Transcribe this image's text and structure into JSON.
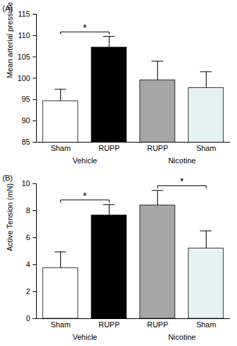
{
  "chart_data": [
    {
      "type": "bar",
      "title": "(A)",
      "y_label": "Mean arterial pressure (mm Hg)",
      "categories": [
        "Sham",
        "RUPP",
        "RUPP",
        "Sham"
      ],
      "group_labels": [
        "Vehicle",
        "Vehicle",
        "Nicotine",
        "Nicotine"
      ],
      "values": [
        94.6,
        107.2,
        99.5,
        97.7
      ],
      "errors": [
        2.8,
        2.6,
        4.5,
        3.8
      ],
      "colors": [
        "#ffffff",
        "#000000",
        "#a6a6a6",
        "#e4f2f2"
      ],
      "ylim": [
        85,
        115
      ],
      "yticks": [
        85,
        90,
        95,
        100,
        105,
        110,
        115
      ],
      "annotations": [
        {
          "between": [
            0,
            1
          ],
          "text": "*"
        }
      ]
    },
    {
      "type": "bar",
      "title": "(B)",
      "y_label": "Active Tension (mN)",
      "categories": [
        "Sham",
        "RUPP",
        "RUPP",
        "Sham"
      ],
      "group_labels": [
        "Vehicle",
        "Vehicle",
        "Nicotine",
        "Nicotine"
      ],
      "values": [
        3.75,
        7.65,
        8.4,
        5.2
      ],
      "errors": [
        1.2,
        0.8,
        1.1,
        1.3
      ],
      "colors": [
        "#ffffff",
        "#000000",
        "#a6a6a6",
        "#e4f2f2"
      ],
      "ylim": [
        0,
        10
      ],
      "yticks": [
        0,
        2,
        4,
        6,
        8,
        10
      ],
      "annotations": [
        {
          "between": [
            0,
            1
          ],
          "text": "*"
        },
        {
          "between": [
            2,
            3
          ],
          "text": "*"
        }
      ]
    }
  ]
}
